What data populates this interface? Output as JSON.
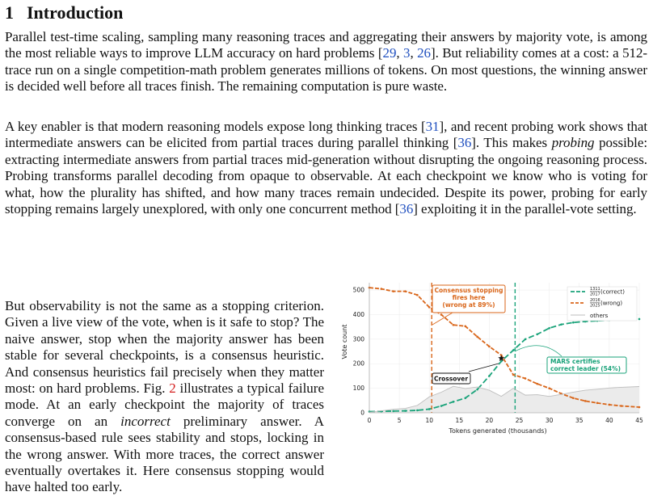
{
  "section": {
    "number": "1",
    "title": "Introduction"
  },
  "p1": {
    "t1": "Parallel test-time scaling, sampling many reasoning traces and aggregating their answers by majority vote, is among the most reliable ways to improve LLM accuracy on hard problems [",
    "c1": "29",
    "s1": ", ",
    "c2": "3",
    "s2": ", ",
    "c3": "26",
    "t2": "]. But reliability comes at a cost: a 512-trace run on a single competition-math problem generates millions of tokens. On most questions, the winning answer is decided well before all traces finish. The remaining computation is pure waste."
  },
  "p2": {
    "t1": "A key enabler is that modern reasoning models expose long thinking traces [",
    "c1": "31",
    "t2": "], and recent probing work shows that intermediate answers can be elicited from partial traces during parallel thinking [",
    "c2": "36",
    "t3": "]. This makes ",
    "em": "probing",
    "t4": " possible: extracting intermediate answers from partial traces mid-generation without disrupting the ongoing reasoning process. Probing transforms parallel decoding from opaque to observable. At each checkpoint we know who is voting for what, how the plurality has shifted, and how many traces remain undecided. Despite its power, probing for early stopping remains largely unexplored, with only one concurrent method [",
    "c3": "36",
    "t5": "] exploiting it in the parallel-vote setting."
  },
  "p3": {
    "t1": "But observability is not the same as a stopping criterion. Given a live view of the vote, when is it safe to stop? The naive answer, stop when the majority answer has been stable for several checkpoints, is a consensus heuristic. And consensus heuristics fail precisely when they matter most: on hard problems. Fig. ",
    "figref": "2",
    "t2": " illustrates a typical failure mode. At an early checkpoint the majority of traces converge on an ",
    "em": "incorrect",
    "t3": " preliminary answer. A consensus-based rule sees stability and stops, locking in the wrong answer. With more traces, the correct answer eventually overtakes it. Here consensus stopping would have halted too early."
  },
  "chart_data": {
    "type": "line",
    "xlabel": "Tokens generated (thousands)",
    "ylabel": "Vote count",
    "xlim": [
      0,
      45
    ],
    "ylim": [
      0,
      530
    ],
    "xticks": [
      0,
      5,
      10,
      15,
      20,
      25,
      30,
      35,
      40,
      45
    ],
    "yticks": [
      0,
      100,
      200,
      300,
      400,
      500
    ],
    "grid": true,
    "legend_position": "top-right",
    "legend": {
      "correct": {
        "num": "1311",
        "den": "2017",
        "suffix": " (correct)"
      },
      "wrong": {
        "num": "2016",
        "den": "2025",
        "suffix": " (wrong)"
      },
      "others": "others"
    },
    "series": [
      {
        "key": "correct",
        "color": "#1aa37a",
        "dash": "7,3",
        "x": [
          0,
          2,
          4,
          6,
          8,
          10,
          12,
          14,
          16,
          18,
          20,
          22,
          24,
          26,
          28,
          30,
          32,
          34,
          36,
          38,
          40,
          42,
          45
        ],
        "y": [
          5,
          6,
          7,
          8,
          10,
          15,
          28,
          45,
          60,
          95,
          150,
          210,
          255,
          300,
          320,
          345,
          360,
          368,
          372,
          375,
          378,
          380,
          382
        ]
      },
      {
        "key": "wrong",
        "color": "#d9661a",
        "dash": "5,2",
        "x": [
          0,
          2,
          4,
          6,
          8,
          10,
          12,
          14,
          16,
          18,
          20,
          22,
          24,
          26,
          28,
          30,
          32,
          34,
          36,
          38,
          40,
          42,
          45
        ],
        "y": [
          510,
          505,
          495,
          495,
          480,
          430,
          400,
          358,
          353,
          310,
          270,
          235,
          155,
          140,
          118,
          100,
          78,
          60,
          48,
          40,
          33,
          28,
          23
        ]
      },
      {
        "key": "others",
        "color": "#bdbdbd",
        "dash": "",
        "x": [
          0,
          2,
          4,
          6,
          8,
          10,
          12,
          14,
          16,
          18,
          20,
          22,
          24,
          26,
          28,
          30,
          32,
          34,
          36,
          38,
          40,
          42,
          45
        ],
        "y": [
          2,
          8,
          14,
          18,
          30,
          65,
          84,
          108,
          99,
          105,
          92,
          67,
          100,
          72,
          74,
          67,
          75,
          84,
          92,
          96,
          101,
          104,
          107
        ]
      }
    ],
    "vlines": [
      {
        "x": 10.4,
        "color": "#d9661a"
      },
      {
        "x": 24.3,
        "color": "#1aa37a"
      }
    ],
    "crossover": {
      "x": 22,
      "y": 222
    },
    "annotations": {
      "consensus": {
        "line1": "Consensus stopping",
        "line2": "fires here",
        "line3": "(wrong at 89%)",
        "color": "#d9661a"
      },
      "mars": {
        "line1": "MARS certifies",
        "line2": "correct leader (54%)",
        "color": "#1aa37a"
      },
      "crossover": {
        "label": "Crossover"
      }
    }
  }
}
